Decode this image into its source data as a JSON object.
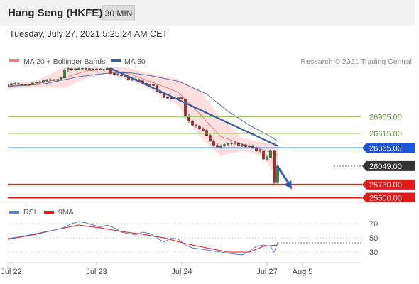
{
  "header": {
    "title": "Hang Seng (HKFE)",
    "timeframe": "30 MIN",
    "datetime": "Tuesday, July 27, 2021 5:25:24 AM CET",
    "copyright": "Research © 2021 Trading Central"
  },
  "legend": {
    "bb": "MA 20 + Bollinger Bands",
    "ma50": "MA 50",
    "rsi": "RSI",
    "ma9": "9MA"
  },
  "colors": {
    "bb_band": "#fcd4d4",
    "bb_mid": "#f08080",
    "ma50": "#3a5f9f",
    "resistance": "#1a56d6",
    "support": "#e21a1a",
    "pivot": "#333333",
    "target_green": "#8cc45a",
    "rsi": "#5b7fd4",
    "rsi_ma": "#e21a1a"
  },
  "chart_data": [
    {
      "type": "candlestick",
      "title": "Hang Seng (HKFE)",
      "timeframe": "30 MIN",
      "x_tick_labels": [
        "Jul 22",
        "Jul 23",
        "Jul 24",
        "Jul 27",
        "Aug 5"
      ],
      "x_tick_times": [
        1,
        25,
        49,
        73,
        83
      ],
      "ylim": [
        25420,
        27760
      ],
      "ohlc": [
        [
          27445,
          27470,
          27420,
          27455
        ],
        [
          27455,
          27490,
          27440,
          27475
        ],
        [
          27475,
          27500,
          27460,
          27480
        ],
        [
          27480,
          27490,
          27455,
          27465
        ],
        [
          27465,
          27480,
          27450,
          27460
        ],
        [
          27460,
          27475,
          27445,
          27455
        ],
        [
          27455,
          27475,
          27440,
          27465
        ],
        [
          27465,
          27500,
          27455,
          27490
        ],
        [
          27490,
          27520,
          27480,
          27510
        ],
        [
          27510,
          27530,
          27490,
          27500
        ],
        [
          27500,
          27540,
          27490,
          27530
        ],
        [
          27530,
          27560,
          27510,
          27545
        ],
        [
          27545,
          27570,
          27525,
          27550
        ],
        [
          27550,
          27560,
          27525,
          27535
        ],
        [
          27535,
          27560,
          27520,
          27550
        ],
        [
          27550,
          27590,
          27540,
          27580
        ],
        [
          27580,
          27740,
          27570,
          27720
        ],
        [
          27720,
          27760,
          27690,
          27740
        ],
        [
          27740,
          27755,
          27700,
          27725
        ],
        [
          27725,
          27745,
          27705,
          27735
        ],
        [
          27735,
          27755,
          27715,
          27740
        ],
        [
          27740,
          27755,
          27720,
          27745
        ],
        [
          27745,
          27755,
          27725,
          27740
        ],
        [
          27740,
          27750,
          27720,
          27735
        ],
        [
          27735,
          27745,
          27715,
          27730
        ],
        [
          27730,
          27745,
          27710,
          27735
        ],
        [
          27735,
          27745,
          27715,
          27720
        ],
        [
          27720,
          27735,
          27700,
          27725
        ],
        [
          27725,
          27760,
          27715,
          27745
        ],
        [
          27745,
          27750,
          27640,
          27655
        ],
        [
          27655,
          27670,
          27620,
          27640
        ],
        [
          27640,
          27660,
          27615,
          27630
        ],
        [
          27630,
          27650,
          27605,
          27615
        ],
        [
          27615,
          27635,
          27590,
          27600
        ],
        [
          27600,
          27610,
          27530,
          27545
        ],
        [
          27545,
          27575,
          27525,
          27560
        ],
        [
          27560,
          27580,
          27535,
          27550
        ],
        [
          27550,
          27565,
          27520,
          27530
        ],
        [
          27530,
          27545,
          27475,
          27485
        ],
        [
          27485,
          27510,
          27440,
          27455
        ],
        [
          27455,
          27480,
          27430,
          27460
        ],
        [
          27460,
          27475,
          27435,
          27445
        ],
        [
          27445,
          27460,
          27330,
          27345
        ],
        [
          27345,
          27370,
          27300,
          27320
        ],
        [
          27320,
          27340,
          27230,
          27240
        ],
        [
          27240,
          27260,
          27215,
          27235
        ],
        [
          27235,
          27255,
          27210,
          27230
        ],
        [
          27230,
          27245,
          27205,
          27225
        ],
        [
          27225,
          27245,
          27200,
          27235
        ],
        [
          27235,
          27250,
          27200,
          27210
        ],
        [
          27210,
          27225,
          26890,
          26920
        ],
        [
          26920,
          26960,
          26800,
          26830
        ],
        [
          26830,
          26850,
          26740,
          26760
        ],
        [
          26760,
          26790,
          26720,
          26740
        ],
        [
          26740,
          26760,
          26680,
          26700
        ],
        [
          26700,
          26720,
          26650,
          26670
        ],
        [
          26670,
          26690,
          26560,
          26580
        ],
        [
          26580,
          26600,
          26470,
          26490
        ],
        [
          26490,
          26510,
          26390,
          26410
        ],
        [
          26410,
          26440,
          26360,
          26380
        ],
        [
          26380,
          26420,
          26350,
          26400
        ],
        [
          26400,
          26440,
          26380,
          26420
        ],
        [
          26420,
          26450,
          26400,
          26440
        ],
        [
          26440,
          26470,
          26410,
          26450
        ],
        [
          26450,
          26480,
          26420,
          26440
        ],
        [
          26440,
          26460,
          26400,
          26410
        ],
        [
          26410,
          26440,
          26380,
          26420
        ],
        [
          26420,
          26435,
          26370,
          26385
        ],
        [
          26385,
          26420,
          26360,
          26400
        ],
        [
          26400,
          26420,
          26350,
          26370
        ],
        [
          26370,
          26390,
          26300,
          26320
        ],
        [
          26320,
          26350,
          26290,
          26310
        ],
        [
          26310,
          26320,
          26150,
          26170
        ],
        [
          26170,
          26230,
          26140,
          26200
        ],
        [
          26200,
          26340,
          26180,
          26320
        ],
        [
          26320,
          26330,
          25740,
          25760
        ],
        [
          25760,
          26080,
          25740,
          26049
        ]
      ],
      "bb_mid": [
        [
          0,
          27440
        ],
        [
          8,
          27475
        ],
        [
          16,
          27580
        ],
        [
          22,
          27700
        ],
        [
          28,
          27725
        ],
        [
          34,
          27650
        ],
        [
          40,
          27520
        ],
        [
          48,
          27330
        ],
        [
          54,
          26960
        ],
        [
          60,
          26560
        ],
        [
          66,
          26430
        ],
        [
          72,
          26330
        ],
        [
          76,
          26240
        ]
      ],
      "bb_upper": [
        [
          0,
          27490
        ],
        [
          8,
          27530
        ],
        [
          16,
          27770
        ],
        [
          22,
          27830
        ],
        [
          28,
          27800
        ],
        [
          34,
          27750
        ],
        [
          40,
          27660
        ],
        [
          48,
          27560
        ],
        [
          54,
          27350
        ],
        [
          60,
          26900
        ],
        [
          66,
          26540
        ],
        [
          72,
          26450
        ],
        [
          76,
          26420
        ]
      ],
      "bb_lower": [
        [
          0,
          27390
        ],
        [
          8,
          27420
        ],
        [
          16,
          27400
        ],
        [
          22,
          27570
        ],
        [
          28,
          27650
        ],
        [
          34,
          27550
        ],
        [
          40,
          27380
        ],
        [
          48,
          27100
        ],
        [
          54,
          26570
        ],
        [
          60,
          26220
        ],
        [
          66,
          26320
        ],
        [
          72,
          26210
        ],
        [
          76,
          25820
        ]
      ],
      "ma50": [
        [
          0,
          27430
        ],
        [
          10,
          27470
        ],
        [
          20,
          27600
        ],
        [
          28,
          27660
        ],
        [
          34,
          27670
        ],
        [
          40,
          27620
        ],
        [
          48,
          27520
        ],
        [
          56,
          27300
        ],
        [
          62,
          27000
        ],
        [
          68,
          26760
        ],
        [
          74,
          26560
        ],
        [
          76,
          26480
        ]
      ],
      "trendline": [
        [
          29,
          27745
        ],
        [
          76,
          26400
        ]
      ],
      "forecast_arrow": [
        [
          76,
          26040
        ],
        [
          80,
          25650
        ]
      ],
      "levels": [
        {
          "value": 26905,
          "label": "26905.00",
          "kind": "target"
        },
        {
          "value": 26615,
          "label": "26615.00",
          "kind": "target"
        },
        {
          "value": 26365,
          "label": "26365.00",
          "kind": "resistance"
        },
        {
          "value": 26049,
          "label": "26049.00",
          "kind": "pivot"
        },
        {
          "value": 25730,
          "label": "25730.00",
          "kind": "support"
        },
        {
          "value": 25500,
          "label": "25500.00",
          "kind": "support"
        }
      ]
    },
    {
      "type": "line",
      "title": "RSI",
      "ylim": [
        15,
        85
      ],
      "y_tick_labels": [
        "70",
        "50",
        "30"
      ],
      "y_ticks": [
        70,
        50,
        30
      ],
      "series": [
        {
          "name": "RSI",
          "values": [
            [
              0,
              49
            ],
            [
              4,
              52
            ],
            [
              8,
              56
            ],
            [
              12,
              60
            ],
            [
              15,
              63
            ],
            [
              18,
              70
            ],
            [
              20,
              73
            ],
            [
              22,
              71
            ],
            [
              26,
              65
            ],
            [
              28,
              68
            ],
            [
              30,
              64
            ],
            [
              32,
              58
            ],
            [
              36,
              54
            ],
            [
              38,
              58
            ],
            [
              40,
              56
            ],
            [
              42,
              50
            ],
            [
              44,
              44
            ],
            [
              46,
              50
            ],
            [
              48,
              48
            ],
            [
              50,
              40
            ],
            [
              52,
              36
            ],
            [
              56,
              33
            ],
            [
              60,
              30
            ],
            [
              64,
              27
            ],
            [
              66,
              26
            ],
            [
              68,
              31
            ],
            [
              70,
              38
            ],
            [
              72,
              40
            ],
            [
              74,
              38
            ],
            [
              75,
              30
            ],
            [
              76,
              43
            ]
          ]
        },
        {
          "name": "9MA",
          "values": [
            [
              0,
              48
            ],
            [
              8,
              55
            ],
            [
              14,
              62
            ],
            [
              20,
              68
            ],
            [
              26,
              64
            ],
            [
              32,
              59
            ],
            [
              38,
              55
            ],
            [
              44,
              50
            ],
            [
              50,
              42
            ],
            [
              56,
              36
            ],
            [
              62,
              30
            ],
            [
              68,
              30
            ],
            [
              72,
              38
            ],
            [
              76,
              40
            ]
          ]
        }
      ]
    }
  ]
}
